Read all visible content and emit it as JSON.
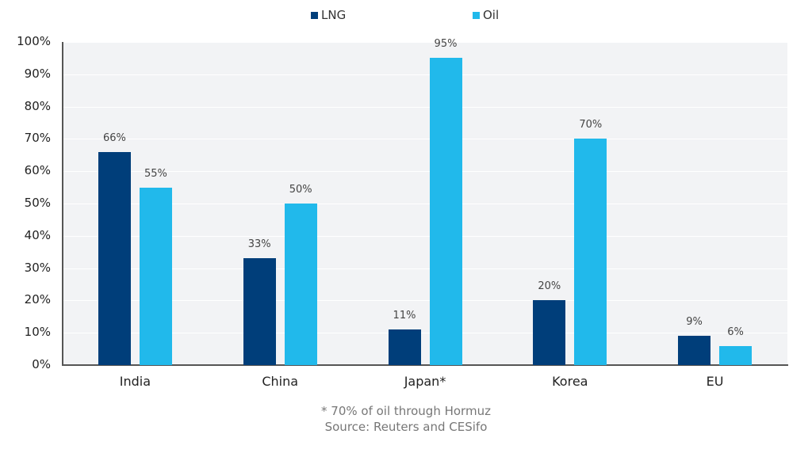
{
  "chart_data": {
    "type": "bar",
    "title": "",
    "xlabel": "",
    "ylabel": "",
    "categories": [
      "India",
      "China",
      "Japan*",
      "Korea",
      "EU"
    ],
    "series": [
      {
        "name": "LNG",
        "color": "#003e7a",
        "values": [
          66,
          33,
          11,
          20,
          9
        ],
        "labels": [
          "66%",
          "33%",
          "11%",
          "20%",
          "9%"
        ]
      },
      {
        "name": "Oil",
        "color": "#21b9eb",
        "values": [
          55,
          50,
          95,
          70,
          6
        ],
        "labels": [
          "55%",
          "50%",
          "95%",
          "70%",
          "6%"
        ]
      }
    ],
    "ylim": [
      0,
      100
    ],
    "yticks": [
      "0%",
      "10%",
      "20%",
      "30%",
      "40%",
      "50%",
      "60%",
      "70%",
      "80%",
      "90%",
      "100%"
    ],
    "grid": true,
    "legend_position": "top",
    "annotations": [
      "* 70% of oil through Hormuz",
      "Source: Reuters and CESifo"
    ]
  },
  "legend": {
    "items": [
      {
        "label": "LNG",
        "color": "#003e7a"
      },
      {
        "label": "Oil",
        "color": "#21b9eb"
      }
    ]
  },
  "footnote": {
    "note": "* 70% of oil through Hormuz",
    "source": "Source: Reuters and CESifo"
  }
}
